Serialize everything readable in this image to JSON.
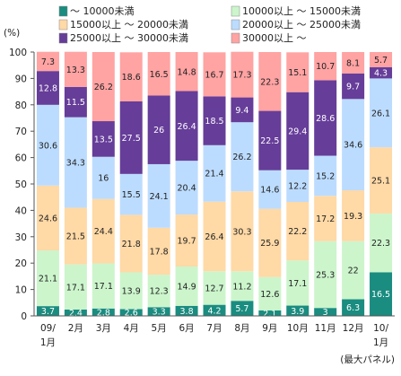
{
  "chart_data": {
    "type": "bar",
    "stacked": true,
    "title": "",
    "xlabel": "",
    "ylabel": "(%)",
    "ylim": [
      0,
      100
    ],
    "yticks": [
      0,
      10,
      20,
      30,
      40,
      50,
      60,
      70,
      80,
      90,
      100
    ],
    "grid": false,
    "legend_position": "top",
    "note": "(最大パネル)",
    "categories": [
      [
        "09/",
        "1月"
      ],
      [
        "2月"
      ],
      [
        "3月"
      ],
      [
        "4月"
      ],
      [
        "5月"
      ],
      [
        "6月"
      ],
      [
        "7月"
      ],
      [
        "8月"
      ],
      [
        "9月"
      ],
      [
        "10月"
      ],
      [
        "11月"
      ],
      [
        "12月"
      ],
      [
        "10/",
        "1月"
      ]
    ],
    "series": [
      {
        "name": "～ 10000未満",
        "color": "#1a8c80",
        "label_color": "#ffffff",
        "values": [
          3.7,
          2.4,
          2.8,
          2.6,
          3.3,
          3.8,
          4.2,
          5.7,
          2.1,
          3.9,
          3.0,
          6.3,
          16.5
        ]
      },
      {
        "name": "10000以上 ～ 15000未満",
        "color": "#ccf5cc",
        "label_color": "#222222",
        "values": [
          21.1,
          17.1,
          17.1,
          13.9,
          12.3,
          14.9,
          12.7,
          11.2,
          12.6,
          17.1,
          25.3,
          22.0,
          22.3
        ]
      },
      {
        "name": "15000以上 ～ 20000未満",
        "color": "#ffd9a6",
        "label_color": "#222222",
        "values": [
          24.6,
          21.5,
          24.4,
          21.8,
          17.8,
          19.7,
          26.4,
          30.3,
          25.9,
          22.2,
          17.2,
          19.3,
          25.1
        ]
      },
      {
        "name": "20000以上 ～ 25000未満",
        "color": "#bcdcff",
        "label_color": "#222222",
        "values": [
          30.6,
          34.3,
          16.0,
          15.5,
          24.1,
          20.4,
          21.4,
          26.2,
          14.6,
          12.2,
          15.2,
          34.6,
          26.1
        ]
      },
      {
        "name": "25000以上 ～ 30000未満",
        "color": "#663d99",
        "label_color": "#ffffff",
        "values": [
          12.8,
          11.5,
          13.5,
          27.5,
          26.0,
          26.4,
          18.5,
          9.4,
          22.5,
          29.4,
          28.6,
          9.7,
          4.3
        ]
      },
      {
        "name": "30000以上 ～",
        "color": "#ffa3a3",
        "label_color": "#222222",
        "values": [
          7.3,
          13.3,
          26.2,
          18.6,
          16.5,
          14.8,
          16.7,
          17.3,
          22.3,
          15.1,
          10.7,
          8.1,
          5.7
        ]
      }
    ]
  }
}
